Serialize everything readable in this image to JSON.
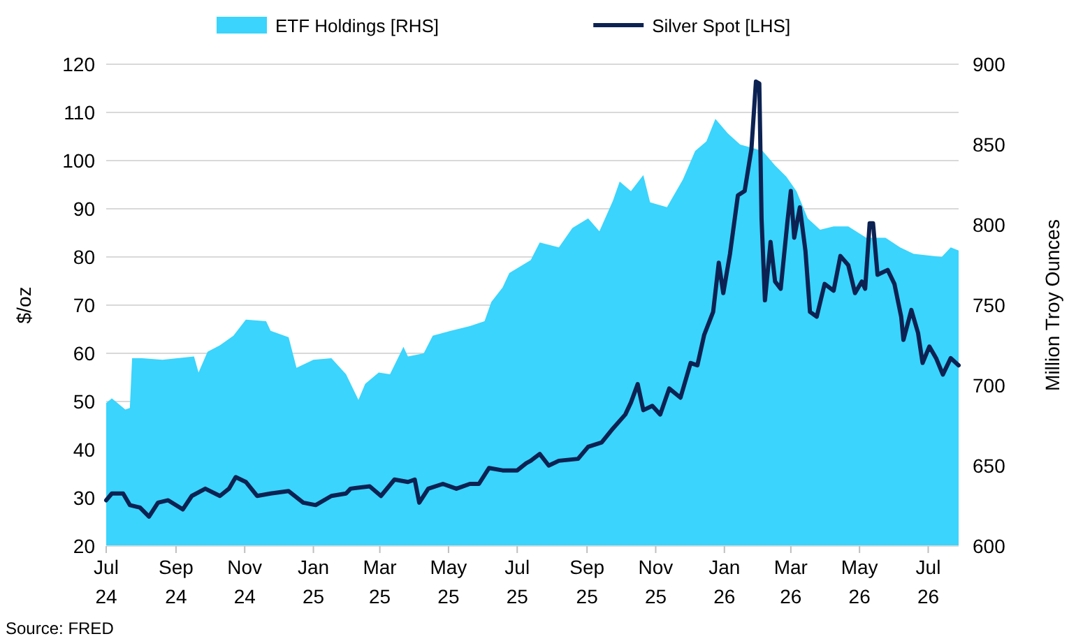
{
  "chart_data": {
    "type": "line",
    "ylabel": "$/oz",
    "y2label": "Million Troy Ounces",
    "annotations": [
      "Source: FRED"
    ],
    "legend": "top",
    "grid": "y",
    "xlim": [
      "2024-07-01",
      "2026-07-28"
    ],
    "xticks": [
      {
        "value": "2024-07-01",
        "label": "Jul 24"
      },
      {
        "value": "2024-09-01",
        "label": "Sep 24"
      },
      {
        "value": "2024-11-01",
        "label": "Nov 24"
      },
      {
        "value": "2025-01-01",
        "label": "Jan 25"
      },
      {
        "value": "2025-03-01",
        "label": "Mar 25"
      },
      {
        "value": "2025-05-01",
        "label": "May 25"
      },
      {
        "value": "2025-07-01",
        "label": "Jul 25"
      },
      {
        "value": "2025-09-01",
        "label": "Sep 25"
      },
      {
        "value": "2025-11-01",
        "label": "Nov 25"
      },
      {
        "value": "2026-01-01",
        "label": "Jan 26"
      },
      {
        "value": "2026-03-01",
        "label": "Mar 26"
      },
      {
        "value": "2026-05-01",
        "label": "May 26"
      },
      {
        "value": "2026-07-01",
        "label": "Jul 26"
      }
    ],
    "ylim": [
      20,
      120
    ],
    "yticks": [
      20,
      30,
      40,
      50,
      60,
      70,
      80,
      90,
      100,
      110,
      120
    ],
    "y2lim": [
      600,
      900
    ],
    "y2ticks": [
      600,
      650,
      700,
      750,
      800,
      850,
      900
    ],
    "series": [
      {
        "name": "ETF Holdings [RHS]",
        "type": "area",
        "axis": "y2",
        "color": "#3ad4fc",
        "x": [
          "2024-07-01",
          "2024-07-06",
          "2024-07-18",
          "2024-07-22",
          "2024-07-24",
          "2024-08-02",
          "2024-08-20",
          "2024-09-17",
          "2024-09-21",
          "2024-09-29",
          "2024-10-10",
          "2024-10-22",
          "2024-11-02",
          "2024-11-20",
          "2024-11-24",
          "2024-12-10",
          "2024-12-17",
          "2025-01-01",
          "2025-01-17",
          "2025-01-30",
          "2025-02-10",
          "2025-02-16",
          "2025-02-28",
          "2025-03-10",
          "2025-03-22",
          "2025-03-26",
          "2025-04-09",
          "2025-04-17",
          "2025-05-03",
          "2025-05-20",
          "2025-06-02",
          "2025-06-08",
          "2025-06-18",
          "2025-06-24",
          "2025-07-13",
          "2025-07-21",
          "2025-08-07",
          "2025-08-19",
          "2025-09-02",
          "2025-09-12",
          "2025-09-24",
          "2025-09-30",
          "2025-10-10",
          "2025-10-21",
          "2025-10-27",
          "2025-11-11",
          "2025-11-25",
          "2025-12-06",
          "2025-12-16",
          "2025-12-24",
          "2026-01-04",
          "2026-01-15",
          "2026-01-25",
          "2026-02-04",
          "2026-02-15",
          "2026-02-25",
          "2026-03-06",
          "2026-03-16",
          "2026-03-27",
          "2026-04-08",
          "2026-04-21",
          "2026-05-07",
          "2026-05-24",
          "2026-06-06",
          "2026-06-18",
          "2026-07-13",
          "2026-07-21",
          "2026-07-28"
        ],
        "values": [
          689,
          692,
          685,
          686,
          717,
          717,
          716,
          718,
          708,
          721,
          725,
          731,
          741,
          740,
          734,
          730,
          711,
          716,
          717,
          707,
          691,
          701,
          708,
          707,
          724,
          718,
          720,
          731,
          734,
          737,
          740,
          752,
          761,
          770,
          778,
          789,
          786,
          798,
          804,
          796,
          815,
          827,
          821,
          831,
          814,
          811,
          828,
          846,
          852,
          866,
          857,
          850,
          848,
          846,
          837,
          830,
          821,
          804,
          797,
          799,
          799,
          792,
          792,
          786,
          782,
          780,
          786,
          784
        ]
      },
      {
        "name": "Silver Spot [LHS]",
        "color": "#0c2252",
        "x": [
          "2024-07-01",
          "2024-07-06",
          "2024-07-16",
          "2024-07-22",
          "2024-07-31",
          "2024-08-08",
          "2024-08-16",
          "2024-08-25",
          "2024-09-07",
          "2024-09-15",
          "2024-09-27",
          "2024-10-10",
          "2024-10-18",
          "2024-10-24",
          "2024-11-02",
          "2024-11-12",
          "2024-11-24",
          "2024-12-10",
          "2024-12-23",
          "2025-01-03",
          "2025-01-17",
          "2025-01-30",
          "2025-02-03",
          "2025-02-20",
          "2025-03-02",
          "2025-03-14",
          "2025-03-26",
          "2025-04-01",
          "2025-04-05",
          "2025-04-13",
          "2025-04-26",
          "2025-05-08",
          "2025-05-20",
          "2025-05-28",
          "2025-06-06",
          "2025-06-18",
          "2025-07-01",
          "2025-07-09",
          "2025-07-13",
          "2025-07-21",
          "2025-07-29",
          "2025-08-07",
          "2025-08-24",
          "2025-09-02",
          "2025-09-14",
          "2025-09-24",
          "2025-10-05",
          "2025-10-10",
          "2025-10-16",
          "2025-10-21",
          "2025-10-29",
          "2025-11-05",
          "2025-11-13",
          "2025-11-23",
          "2025-12-02",
          "2025-12-08",
          "2025-12-14",
          "2025-12-22",
          "2025-12-27",
          "2025-12-31",
          "2026-01-06",
          "2026-01-13",
          "2026-01-19",
          "2026-01-25",
          "2026-01-29",
          "2026-02-01",
          "2026-02-03",
          "2026-02-06",
          "2026-02-11",
          "2026-02-15",
          "2026-02-20",
          "2026-02-26",
          "2026-03-01",
          "2026-03-04",
          "2026-03-09",
          "2026-03-14",
          "2026-03-18",
          "2026-03-24",
          "2026-03-31",
          "2026-04-08",
          "2026-04-14",
          "2026-04-21",
          "2026-04-27",
          "2026-05-03",
          "2026-05-06",
          "2026-05-10",
          "2026-05-13",
          "2026-05-17",
          "2026-05-26",
          "2026-06-01",
          "2026-06-07",
          "2026-06-09",
          "2026-06-16",
          "2026-06-22",
          "2026-06-26",
          "2026-07-02",
          "2026-07-08",
          "2026-07-14",
          "2026-07-21",
          "2026-07-28"
        ],
        "values": [
          29.5,
          30.9,
          30.9,
          28.5,
          28,
          26.1,
          29,
          29.5,
          27.6,
          30.4,
          31.9,
          30.4,
          31.9,
          34.3,
          33.3,
          30.4,
          30.9,
          31.4,
          29,
          28.5,
          30.4,
          30.9,
          31.9,
          32.4,
          30.4,
          33.8,
          33.3,
          33.8,
          29,
          31.9,
          32.9,
          31.9,
          32.9,
          32.9,
          36.2,
          35.7,
          35.7,
          37.2,
          37.7,
          39.1,
          36.7,
          37.7,
          38.1,
          40.6,
          41.5,
          44.4,
          47.3,
          49.8,
          53.6,
          48.2,
          49.1,
          47.3,
          52.7,
          50.8,
          58,
          57.5,
          63.8,
          68.6,
          78.8,
          72.5,
          80.7,
          92.8,
          93.7,
          102.4,
          116.4,
          116,
          87.9,
          71,
          83.1,
          74.9,
          73.4,
          87.4,
          93.7,
          84,
          90.3,
          81.2,
          68.6,
          67.6,
          74.4,
          73,
          80.2,
          78.3,
          72.5,
          74.9,
          73.4,
          87,
          87,
          76.3,
          77.3,
          74.4,
          67.6,
          62.8,
          69,
          64.2,
          58,
          61.4,
          59,
          55.6,
          59,
          57.5
        ]
      }
    ]
  }
}
